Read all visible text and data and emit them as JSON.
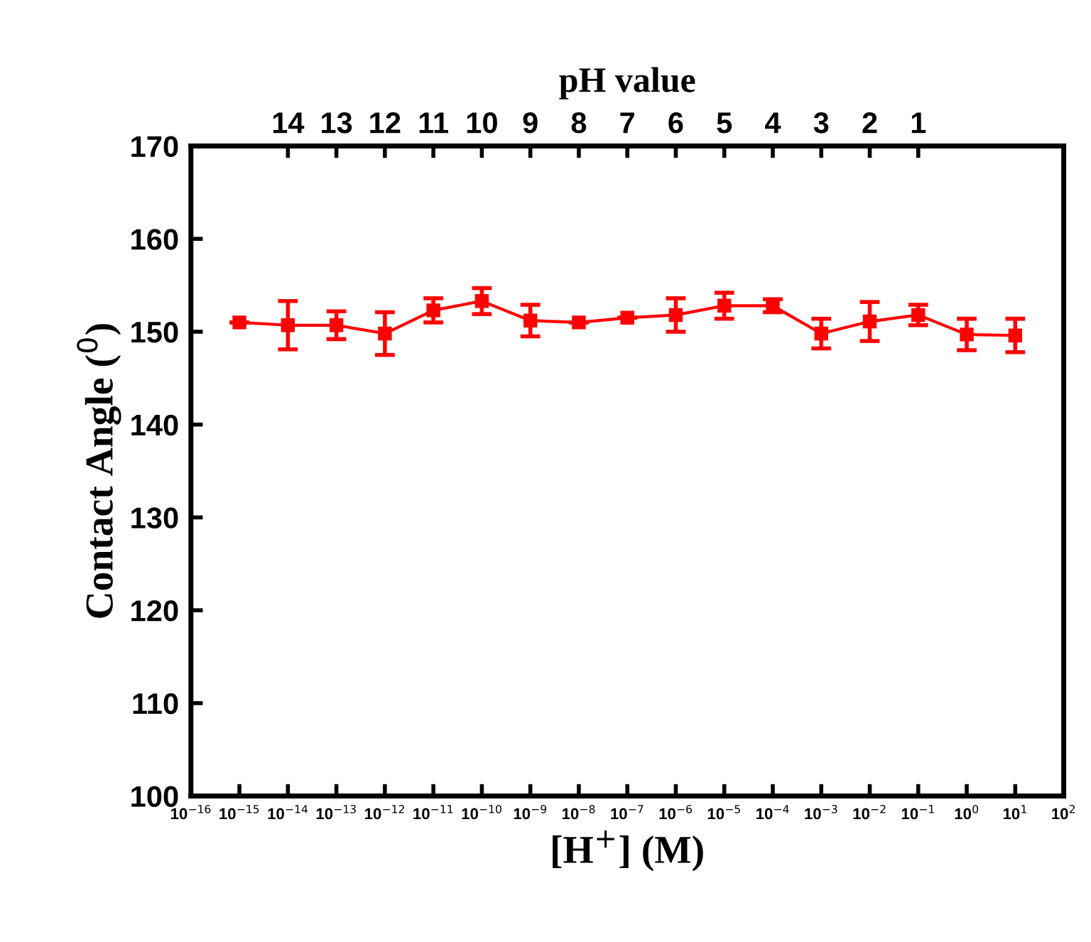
{
  "chart_data": {
    "type": "line",
    "xlabel": "[H$^{+}$] (M)",
    "ylabel": "Contact Angle ($^{0}$)",
    "x2label": "pH value",
    "log": "x",
    "marker": "square",
    "line_style": "solid",
    "grid": false,
    "x": [
      1e-15,
      1e-14,
      1e-13,
      1e-12,
      1e-11,
      1e-10,
      1e-09,
      1e-08,
      1e-07,
      1e-06,
      1e-05,
      0.0001,
      0.001,
      0.01,
      0.1,
      1,
      10
    ],
    "series": [
      {
        "color": "#ff0000",
        "values": [
          151.0,
          150.7,
          150.7,
          149.8,
          152.3,
          153.3,
          151.2,
          151.0,
          151.5,
          151.8,
          152.8,
          152.8,
          149.8,
          151.1,
          151.8,
          149.7,
          149.6
        ],
        "errors": [
          null,
          2.6,
          1.5,
          2.3,
          1.3,
          1.4,
          1.7,
          null,
          null,
          1.8,
          1.4,
          0.7,
          1.6,
          2.1,
          1.1,
          1.7,
          1.8
        ]
      }
    ],
    "xlim": [
      1e-16,
      100
    ],
    "xticks": [
      {
        "value": 1e-16,
        "label": "10$^{−16}$"
      },
      {
        "value": 1e-15,
        "label": "10$^{−15}$"
      },
      {
        "value": 1e-14,
        "label": "10$^{−14}$"
      },
      {
        "value": 1e-13,
        "label": "10$^{−13}$"
      },
      {
        "value": 1e-12,
        "label": "10$^{−12}$"
      },
      {
        "value": 1e-11,
        "label": "10$^{−11}$"
      },
      {
        "value": 1e-10,
        "label": "10$^{−10}$"
      },
      {
        "value": 1e-09,
        "label": "10$^{−9}$"
      },
      {
        "value": 1e-08,
        "label": "10$^{−8}$"
      },
      {
        "value": 1e-07,
        "label": "10$^{−7}$"
      },
      {
        "value": 1e-06,
        "label": "10$^{−6}$"
      },
      {
        "value": 1e-05,
        "label": "10$^{−5}$"
      },
      {
        "value": 0.0001,
        "label": "10$^{−4}$"
      },
      {
        "value": 0.001,
        "label": "10$^{−3}$"
      },
      {
        "value": 0.01,
        "label": "10$^{−2}$"
      },
      {
        "value": 0.1,
        "label": "10$^{−1}$"
      },
      {
        "value": 1,
        "label": "10$^{0}$"
      },
      {
        "value": 10,
        "label": "10$^{1}$"
      },
      {
        "value": 100,
        "label": "10$^{2}$"
      }
    ],
    "x2lim": [
      16,
      -2
    ],
    "x2ticks": [
      14,
      13,
      12,
      11,
      10,
      9,
      8,
      7,
      6,
      5,
      4,
      3,
      2,
      1
    ],
    "ylim": [
      100,
      170
    ],
    "yticks": [
      100,
      110,
      120,
      130,
      140,
      150,
      160,
      170
    ]
  }
}
